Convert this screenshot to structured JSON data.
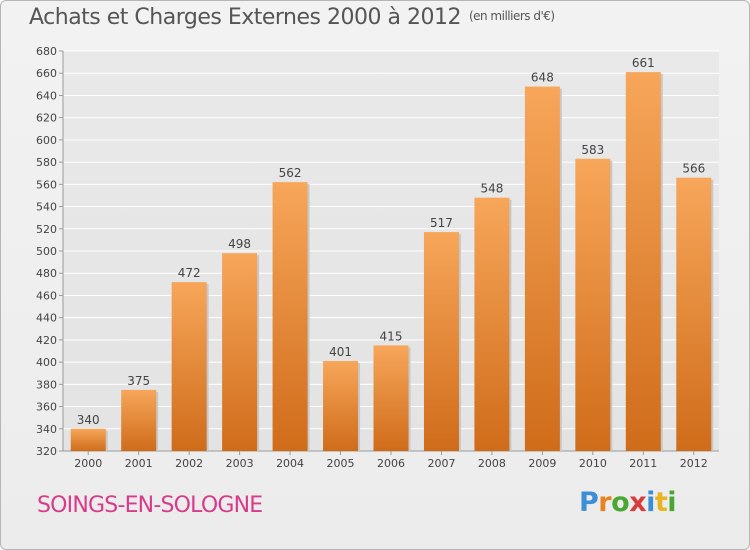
{
  "header": {
    "title": "Achats et Charges Externes 2000 à 2012",
    "unit": "(en milliers d'€)"
  },
  "footer": {
    "commune": "SOINGS-EN-SOLOGNE",
    "logo": {
      "letters": [
        "P",
        "r",
        "o",
        "x",
        "i",
        "t",
        "i"
      ],
      "colors": [
        "#3a8fd6",
        "#e8831f",
        "#4aa832",
        "#d93a3a",
        "#3a8fd6",
        "#e8b41f",
        "#4aa832"
      ]
    }
  },
  "colors": {
    "bar_top": "#f7a65a",
    "bar_bottom": "#cf6c1a",
    "axis_text": "#444444",
    "grid": "#ffffff"
  },
  "chart_data": {
    "type": "bar",
    "title": "Achats et Charges Externes 2000 à 2012",
    "subtitle": "(en milliers d'€)",
    "xlabel": "",
    "ylabel": "",
    "categories": [
      "2000",
      "2001",
      "2002",
      "2003",
      "2004",
      "2005",
      "2006",
      "2007",
      "2008",
      "2009",
      "2010",
      "2011",
      "2012"
    ],
    "values": [
      340,
      375,
      472,
      498,
      562,
      401,
      415,
      517,
      548,
      648,
      583,
      661,
      566
    ],
    "ylim": [
      320,
      680
    ],
    "yticks": [
      320,
      340,
      360,
      380,
      400,
      420,
      440,
      460,
      480,
      500,
      520,
      540,
      560,
      580,
      600,
      620,
      640,
      660,
      680
    ],
    "grid": true,
    "data_labels": true
  }
}
